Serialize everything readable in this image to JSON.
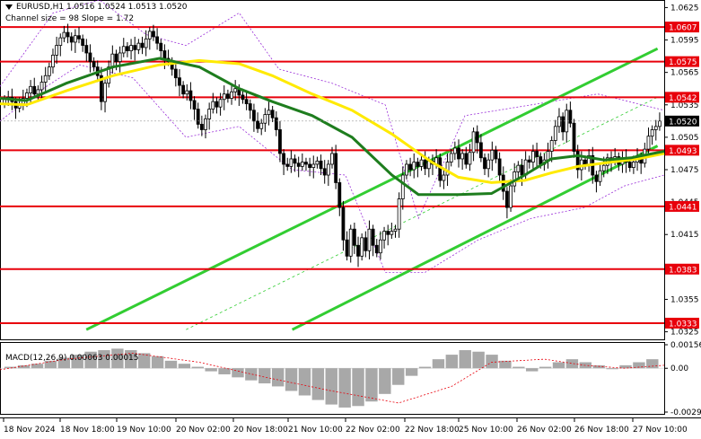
{
  "header": {
    "symbol_line": "EURUSD,H1  1.0516 1.0524 1.0513 1.0520",
    "channel_line": "Channel size = 98  Slope = 1.72"
  },
  "macd": {
    "label": "MACD(12,26,9) 0.00063 0.00015",
    "ticks": [
      "0.00156",
      "0.00",
      "-0.0029"
    ]
  },
  "colors": {
    "level": "#e8000b",
    "channel": "#32cd32",
    "ma_slow": "#1e7d1e",
    "ma_fast": "#ffea00",
    "candle": "#000000",
    "price_box": "#000000",
    "envelope": "#9b30d9",
    "macd_hist": "#a8a8a8",
    "macd_signal": "#e8000b"
  },
  "chart_data": {
    "type": "candlestick",
    "symbol": "EURUSD",
    "timeframe": "H1",
    "last": {
      "open": 1.0516,
      "high": 1.0524,
      "low": 1.0513,
      "close": 1.052
    },
    "current_price": 1.052,
    "ylim": [
      1.0318,
      1.0632
    ],
    "y_ticks": [
      "1.0625",
      "1.0595",
      "1.0565",
      "1.0535",
      "1.0505",
      "1.0475",
      "1.0445",
      "1.0415",
      "1.0385",
      "1.0355",
      "1.0325"
    ],
    "x_ticks": [
      "18 Nov 2024",
      "18 Nov 18:00",
      "19 Nov 10:00",
      "20 Nov 02:00",
      "20 Nov 18:00",
      "21 Nov 10:00",
      "22 Nov 02:00",
      "22 Nov 18:00",
      "25 Nov 10:00",
      "26 Nov 02:00",
      "26 Nov 18:00",
      "27 Nov 10:00"
    ],
    "levels": [
      {
        "price": 1.0607,
        "label": "1.0607"
      },
      {
        "price": 1.0575,
        "label": "1.0575"
      },
      {
        "price": 1.0542,
        "label": "1.0542"
      },
      {
        "price": 1.0493,
        "label": "1.0493"
      },
      {
        "price": 1.0441,
        "label": "1.0441"
      },
      {
        "price": 1.0383,
        "label": "1.0383"
      },
      {
        "price": 1.0333,
        "label": "1.0333"
      }
    ],
    "channel": {
      "upper": [
        [
          0.13,
          1.0327
        ],
        [
          0.99,
          1.0587
        ]
      ],
      "lower": [
        [
          0.44,
          1.0327
        ],
        [
          0.99,
          1.0497
        ]
      ],
      "middle": [
        [
          0.28,
          1.0327
        ],
        [
          0.99,
          1.0542
        ]
      ]
    },
    "closes": [
      1.054,
      1.0542,
      1.0538,
      1.0532,
      1.0536,
      1.0541,
      1.0546,
      1.0552,
      1.0545,
      1.0549,
      1.0556,
      1.0562,
      1.057,
      1.0581,
      1.059,
      1.0597,
      1.0602,
      1.0598,
      1.0593,
      1.0599,
      1.0596,
      1.059,
      1.0583,
      1.0575,
      1.057,
      1.0562,
      1.0538,
      1.0555,
      1.057,
      1.0582,
      1.0575,
      1.0583,
      1.0589,
      1.0585,
      1.059,
      1.0586,
      1.0592,
      1.0588,
      1.0596,
      1.0603,
      1.0598,
      1.0592,
      1.0585,
      1.0578,
      1.0575,
      1.0568,
      1.056,
      1.0553,
      1.0545,
      1.0548,
      1.0539,
      1.0531,
      1.0517,
      1.0512,
      1.0522,
      1.0531,
      1.0538,
      1.0533,
      1.054,
      1.0545,
      1.0541,
      1.0547,
      1.055,
      1.0544,
      1.054,
      1.0536,
      1.053,
      1.052,
      1.0513,
      1.0518,
      1.0526,
      1.053,
      1.0523,
      1.0512,
      1.049,
      1.048,
      1.0478,
      1.0485,
      1.0481,
      1.0478,
      1.0482,
      1.048,
      1.0477,
      1.048,
      1.0483,
      1.0476,
      1.047,
      1.048,
      1.049,
      1.0463,
      1.044,
      1.041,
      1.0395,
      1.042,
      1.0405,
      1.0395,
      1.0412,
      1.04,
      1.042,
      1.0405,
      1.0398,
      1.041,
      1.0418,
      1.0415,
      1.0418,
      1.042,
      1.0448,
      1.047,
      1.048,
      1.0475,
      1.0482,
      1.0478,
      1.0484,
      1.0476,
      1.0483,
      1.048,
      1.0486,
      1.0465,
      1.047,
      1.0482,
      1.049,
      1.0495,
      1.0485,
      1.049,
      1.048,
      1.0491,
      1.051,
      1.05,
      1.0486,
      1.0476,
      1.0484,
      1.0493,
      1.0485,
      1.047,
      1.0455,
      1.044,
      1.046,
      1.0473,
      1.0479,
      1.047,
      1.0484,
      1.0482,
      1.0492,
      1.0487,
      1.048,
      1.0484,
      1.0492,
      1.0502,
      1.0515,
      1.0524,
      1.051,
      1.053,
      1.0518,
      1.0492,
      1.0475,
      1.0484,
      1.0479,
      1.0488,
      1.047,
      1.0464,
      1.0474,
      1.0479,
      1.0486,
      1.0483,
      1.0487,
      1.048,
      1.0486,
      1.0482,
      1.0477,
      1.0482,
      1.0487,
      1.0481,
      1.0494,
      1.0506,
      1.0512,
      1.0515,
      1.052
    ],
    "ma_fast": [
      [
        0.0,
        1.0536
      ],
      [
        0.04,
        1.0535
      ],
      [
        0.1,
        1.0548
      ],
      [
        0.17,
        1.0562
      ],
      [
        0.24,
        1.0572
      ],
      [
        0.3,
        1.0576
      ],
      [
        0.36,
        1.0573
      ],
      [
        0.41,
        1.0562
      ],
      [
        0.47,
        1.0545
      ],
      [
        0.53,
        1.053
      ],
      [
        0.59,
        1.0508
      ],
      [
        0.65,
        1.0482
      ],
      [
        0.69,
        1.0468
      ],
      [
        0.74,
        1.0463
      ],
      [
        0.79,
        1.0465
      ],
      [
        0.83,
        1.0472
      ],
      [
        0.87,
        1.0478
      ],
      [
        0.92,
        1.0482
      ],
      [
        0.96,
        1.0485
      ],
      [
        1.0,
        1.049
      ]
    ],
    "ma_slow": [
      [
        0.0,
        1.0541
      ],
      [
        0.04,
        1.0539
      ],
      [
        0.1,
        1.0555
      ],
      [
        0.17,
        1.057
      ],
      [
        0.24,
        1.0578
      ],
      [
        0.3,
        1.057
      ],
      [
        0.36,
        1.055
      ],
      [
        0.41,
        1.0538
      ],
      [
        0.47,
        1.0525
      ],
      [
        0.53,
        1.0505
      ],
      [
        0.59,
        1.047
      ],
      [
        0.63,
        1.0452
      ],
      [
        0.69,
        1.0452
      ],
      [
        0.74,
        1.0453
      ],
      [
        0.79,
        1.047
      ],
      [
        0.83,
        1.0485
      ],
      [
        0.87,
        1.0488
      ],
      [
        0.91,
        1.0484
      ],
      [
        0.95,
        1.0486
      ],
      [
        1.0,
        1.0492
      ]
    ],
    "envelope_upper": [
      [
        0.0,
        1.0552
      ],
      [
        0.08,
        1.062
      ],
      [
        0.15,
        1.0632
      ],
      [
        0.22,
        1.06
      ],
      [
        0.28,
        1.059
      ],
      [
        0.36,
        1.062
      ],
      [
        0.42,
        1.0568
      ],
      [
        0.5,
        1.0555
      ],
      [
        0.58,
        1.0535
      ],
      [
        0.63,
        1.043
      ],
      [
        0.7,
        1.0525
      ],
      [
        0.8,
        1.0535
      ],
      [
        0.9,
        1.0545
      ],
      [
        1.0,
        1.053
      ]
    ],
    "envelope_lower": [
      [
        0.0,
        1.052
      ],
      [
        0.06,
        1.0548
      ],
      [
        0.12,
        1.0572
      ],
      [
        0.2,
        1.056
      ],
      [
        0.28,
        1.0505
      ],
      [
        0.36,
        1.0515
      ],
      [
        0.44,
        1.0475
      ],
      [
        0.52,
        1.047
      ],
      [
        0.58,
        1.038
      ],
      [
        0.64,
        1.038
      ],
      [
        0.72,
        1.041
      ],
      [
        0.8,
        1.043
      ],
      [
        0.88,
        1.044
      ],
      [
        0.94,
        1.046
      ],
      [
        1.0,
        1.047
      ]
    ],
    "macd": {
      "value": 0.00063,
      "signal": 0.00015,
      "ylim": [
        -0.0029,
        0.00156
      ],
      "hist": [
        0.0001,
        0.0002,
        0.0003,
        0.0005,
        0.0007,
        0.0009,
        0.0011,
        0.0012,
        0.0013,
        0.0012,
        0.001,
        0.0008,
        0.0005,
        0.0003,
        0.0001,
        -0.0002,
        -0.0004,
        -0.0006,
        -0.0008,
        -0.001,
        -0.0012,
        -0.0015,
        -0.0018,
        -0.0021,
        -0.0024,
        -0.0026,
        -0.0025,
        -0.0022,
        -0.0017,
        -0.0011,
        -0.0005,
        0.0001,
        0.0006,
        0.0009,
        0.0012,
        0.0011,
        0.0009,
        0.0005,
        0.0001,
        -0.0002,
        0.0001,
        0.0004,
        0.0006,
        0.0004,
        0.0002,
        0.0,
        0.0002,
        0.0004,
        0.0006
      ],
      "signal_line": [
        [
          0.0,
          -0.0001
        ],
        [
          0.1,
          0.0006
        ],
        [
          0.2,
          0.001
        ],
        [
          0.3,
          0.0004
        ],
        [
          0.4,
          -0.0006
        ],
        [
          0.5,
          -0.0015
        ],
        [
          0.6,
          -0.0023
        ],
        [
          0.68,
          -0.0012
        ],
        [
          0.74,
          0.0004
        ],
        [
          0.82,
          0.0006
        ],
        [
          0.88,
          0.0002
        ],
        [
          0.94,
          0.0
        ],
        [
          1.0,
          0.0002
        ]
      ]
    }
  }
}
